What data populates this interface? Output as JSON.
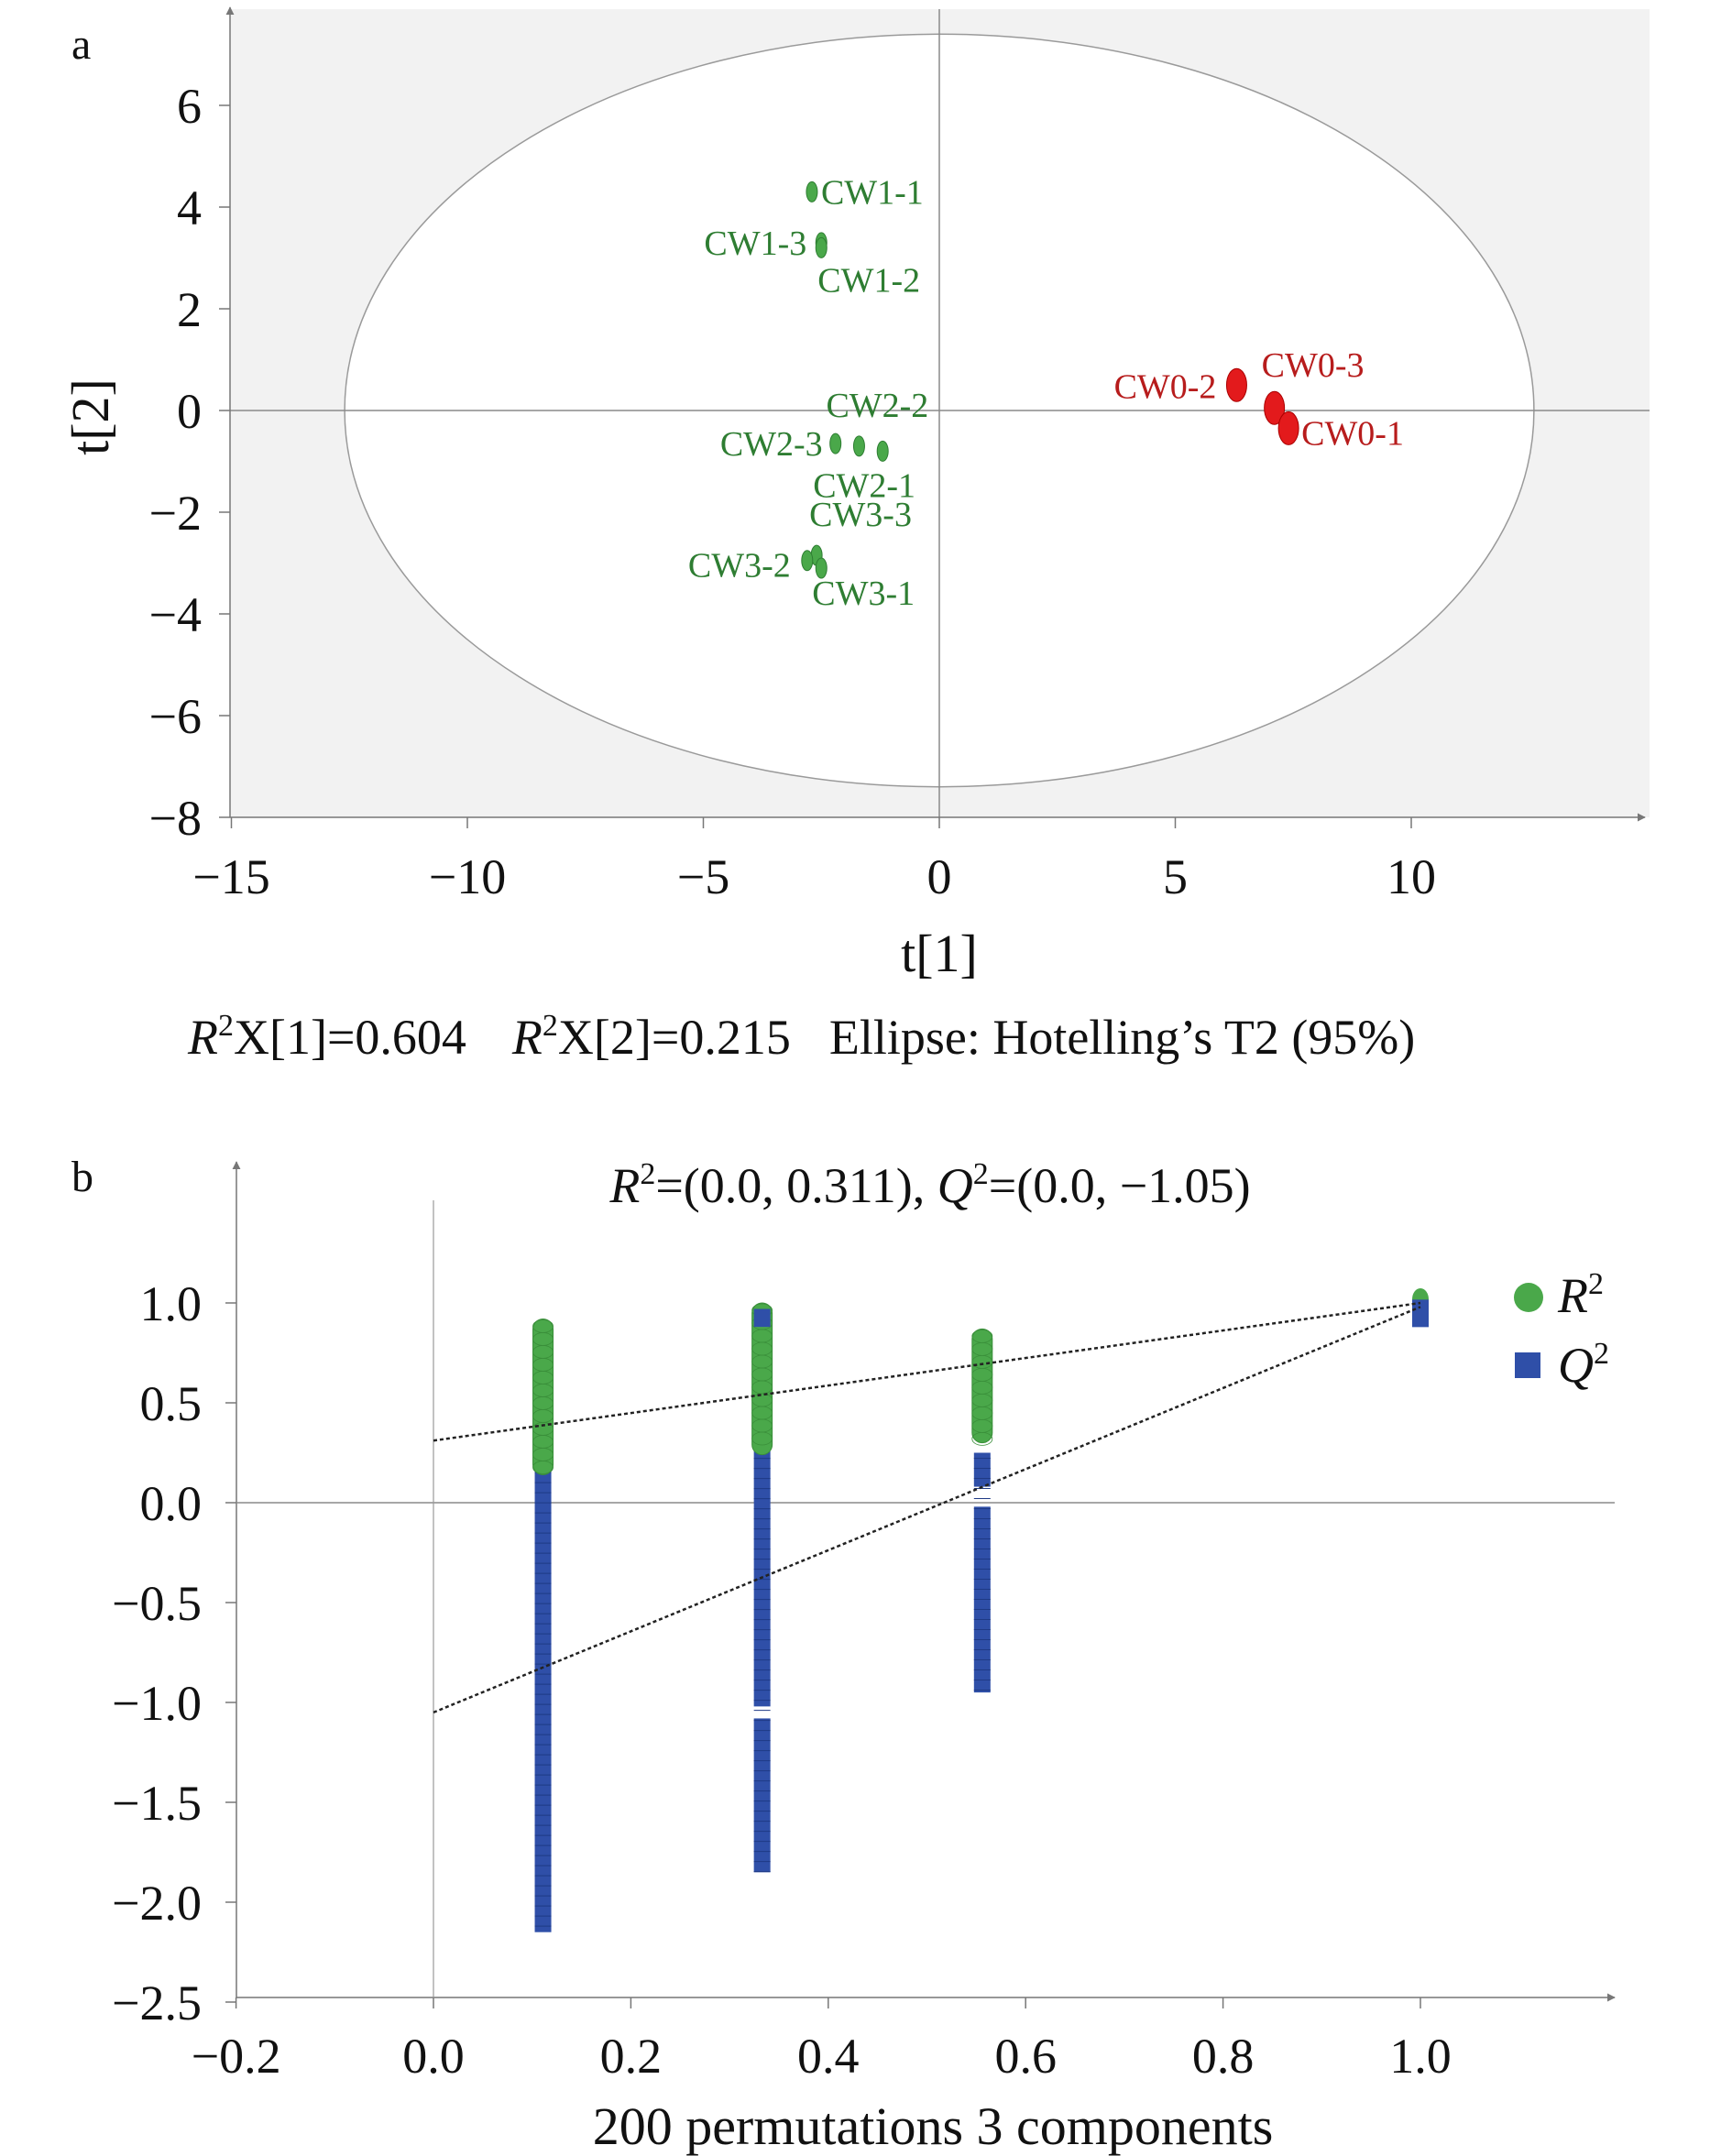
{
  "panels": {
    "a": {
      "letter": "a"
    },
    "b": {
      "letter": "b"
    }
  },
  "colors": {
    "green": "#4aa84a",
    "green_label": "#2e7d32",
    "red": "#e31a1c",
    "red_label": "#b71c1c",
    "blue": "#2f4fa8",
    "panel_a_bg": "#f2f2f2",
    "axis": "#777777"
  },
  "chart_data": [
    {
      "type": "scatter",
      "panel": "a",
      "xlabel": "t[1]",
      "ylabel": "t[2]",
      "xlim": [
        -15,
        15
      ],
      "ylim": [
        -8,
        7.5
      ],
      "xticks": [
        "−15",
        "−10",
        "−5",
        "0",
        "5",
        "10"
      ],
      "xtick_values": [
        -15,
        -10,
        -5,
        0,
        5,
        10
      ],
      "yticks": [
        "6",
        "4",
        "2",
        "0",
        "−2",
        "−4",
        "−6",
        "−8"
      ],
      "ytick_values": [
        6,
        4,
        2,
        0,
        -2,
        -4,
        -6,
        -8
      ],
      "ellipse": {
        "cx": 0,
        "cy": 0,
        "rx": 12.6,
        "ry": 7.4,
        "label": "Ellipse: Hotelling’s T2 (95%)"
      },
      "caption": {
        "r2x1_symbol": "R",
        "r2x1_sup": "2",
        "r2x1_text": "X[1]=0.604",
        "r2x2_symbol": "R",
        "r2x2_sup": "2",
        "r2x2_text": "X[2]=0.215",
        "ellipse_text": "Ellipse: Hotelling’s T2 (95%)"
      },
      "points": [
        {
          "label": "CW1-1",
          "x": -2.7,
          "y": 4.3,
          "group": "green"
        },
        {
          "label": "CW1-3",
          "x": -2.5,
          "y": 3.3,
          "group": "green"
        },
        {
          "label": "CW1-2",
          "x": -2.5,
          "y": 3.2,
          "group": "green"
        },
        {
          "label": "CW2-2",
          "x": -1.7,
          "y": -0.7,
          "group": "green"
        },
        {
          "label": "CW2-3",
          "x": -2.2,
          "y": -0.65,
          "group": "green"
        },
        {
          "label": "CW2-1",
          "x": -1.2,
          "y": -0.8,
          "group": "green"
        },
        {
          "label": "CW3-3",
          "x": -2.6,
          "y": -2.85,
          "group": "green"
        },
        {
          "label": "CW3-2",
          "x": -2.8,
          "y": -2.95,
          "group": "green"
        },
        {
          "label": "CW3-1",
          "x": -2.5,
          "y": -3.1,
          "group": "green"
        },
        {
          "label": "CW0-2",
          "x": 6.3,
          "y": 0.5,
          "group": "red"
        },
        {
          "label": "CW0-3",
          "x": 7.1,
          "y": 0.05,
          "group": "red"
        },
        {
          "label": "CW0-1",
          "x": 7.4,
          "y": -0.35,
          "group": "red"
        }
      ]
    },
    {
      "type": "scatter",
      "panel": "b",
      "title_r_symbol": "R",
      "title_r_sup": "2",
      "title_r_text": "=(0.0, 0.311), ",
      "title_q_symbol": "Q",
      "title_q_sup": "2",
      "title_q_text": "=(0.0, −1.05)",
      "xlabel": "200 permutations 3 components",
      "ylabel": "",
      "xlim": [
        -0.2,
        1.2
      ],
      "ylim": [
        -2.5,
        1.3
      ],
      "xticks": [
        "−0.2",
        "0.0",
        "0.2",
        "0.4",
        "0.6",
        "0.8",
        "1.0"
      ],
      "xtick_values": [
        -0.2,
        0.0,
        0.2,
        0.4,
        0.6,
        0.8,
        1.0
      ],
      "yticks": [
        "1.0",
        "0.5",
        "0.0",
        "−0.5",
        "−1.0",
        "−1.5",
        "−2.0",
        "−2.5"
      ],
      "ytick_values": [
        1.0,
        0.5,
        0.0,
        -0.5,
        -1.0,
        -1.5,
        -2.0,
        -2.5
      ],
      "legend_position": "top-right",
      "series": [
        {
          "name": "R",
          "name_sup": "2",
          "marker": "circle",
          "color": "#4aa84a",
          "columns": [
            {
              "x": 0.111,
              "ymin": 0.14,
              "ymax": 0.92
            },
            {
              "x": 0.333,
              "ymin": 0.24,
              "ymax": 1.0
            },
            {
              "x": 0.556,
              "ymin": 0.3,
              "ymax": 0.87
            }
          ],
          "original": {
            "x": 1.0,
            "y": 1.0
          },
          "regression": {
            "intercept": 0.311,
            "x0": 0.0,
            "x1": 1.0,
            "y1": 1.0
          }
        },
        {
          "name": "Q",
          "name_sup": "2",
          "marker": "square",
          "color": "#2f4fa8",
          "columns": [
            {
              "x": 0.111,
              "ymin": -2.15,
              "ymax": 0.38
            },
            {
              "x": 0.333,
              "ymin": -1.85,
              "ymax": 0.3
            },
            {
              "x": 0.556,
              "ymin": -0.95,
              "ymax": 0.25
            }
          ],
          "top_cluster": {
            "x": 0.333,
            "ymin": 0.88,
            "ymax": 0.97
          },
          "original": {
            "x": 1.0,
            "y": 0.98
          },
          "regression": {
            "intercept": -1.05,
            "x0": 0.0,
            "x1": 1.0,
            "y1": 0.98
          }
        }
      ]
    }
  ]
}
